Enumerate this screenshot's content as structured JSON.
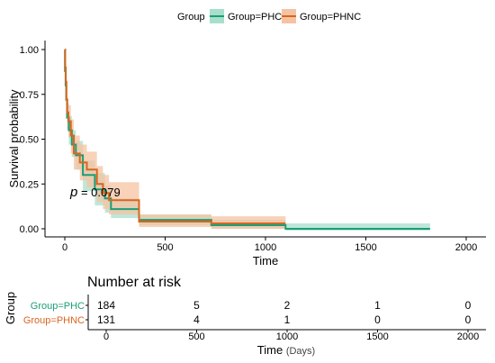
{
  "chart_data": {
    "type": "line",
    "legend": {
      "title": "Group",
      "position": "top",
      "entries": [
        "Group=PHC",
        "Group=PHNC"
      ]
    },
    "colors": {
      "phc": "#1a9e77",
      "phnc": "#d9661f",
      "phc_band": "#a8dfcc",
      "phnc_band": "#f5c3a2"
    },
    "xlabel": "Time",
    "ylabel": "Survival probability",
    "xlim": [
      0,
      2000
    ],
    "ylim": [
      0,
      1
    ],
    "xticks": [
      "0",
      "500",
      "1000",
      "1500",
      "2000"
    ],
    "yticks": [
      "0.00",
      "0.25",
      "0.50",
      "0.75",
      "1.00"
    ],
    "annotation": {
      "italic": "p",
      "text": " = 0.079"
    },
    "series": [
      {
        "name": "Group=PHC",
        "steps": [
          [
            0,
            1.0
          ],
          [
            1,
            0.88
          ],
          [
            4,
            0.8
          ],
          [
            7,
            0.72
          ],
          [
            11,
            0.62
          ],
          [
            20,
            0.55
          ],
          [
            35,
            0.47
          ],
          [
            55,
            0.41
          ],
          [
            90,
            0.3
          ],
          [
            150,
            0.22
          ],
          [
            200,
            0.17
          ],
          [
            230,
            0.11
          ],
          [
            370,
            0.05
          ],
          [
            730,
            0.02
          ],
          [
            1100,
            0.0
          ],
          [
            1820,
            0.0
          ]
        ],
        "band": [
          [
            0,
            1.0,
            1.0
          ],
          [
            1,
            0.83,
            0.92
          ],
          [
            4,
            0.74,
            0.86
          ],
          [
            7,
            0.65,
            0.79
          ],
          [
            11,
            0.55,
            0.7
          ],
          [
            20,
            0.47,
            0.63
          ],
          [
            35,
            0.4,
            0.55
          ],
          [
            55,
            0.33,
            0.49
          ],
          [
            90,
            0.21,
            0.38
          ],
          [
            150,
            0.13,
            0.31
          ],
          [
            200,
            0.09,
            0.24
          ],
          [
            230,
            0.06,
            0.17
          ],
          [
            370,
            0.02,
            0.08
          ],
          [
            730,
            0.0,
            0.05
          ],
          [
            1100,
            -0.01,
            0.03
          ],
          [
            1820,
            -0.01,
            0.03
          ]
        ]
      },
      {
        "name": "Group=PHNC",
        "steps": [
          [
            0,
            1.0
          ],
          [
            2,
            0.9
          ],
          [
            5,
            0.82
          ],
          [
            8,
            0.72
          ],
          [
            12,
            0.65
          ],
          [
            18,
            0.6
          ],
          [
            30,
            0.52
          ],
          [
            45,
            0.42
          ],
          [
            75,
            0.37
          ],
          [
            110,
            0.33
          ],
          [
            160,
            0.25
          ],
          [
            190,
            0.2
          ],
          [
            220,
            0.16
          ],
          [
            370,
            0.04
          ],
          [
            730,
            0.03
          ],
          [
            1100,
            0.03
          ]
        ],
        "band": [
          [
            0,
            1.0,
            1.0
          ],
          [
            2,
            0.84,
            0.95
          ],
          [
            5,
            0.74,
            0.88
          ],
          [
            8,
            0.64,
            0.8
          ],
          [
            12,
            0.56,
            0.73
          ],
          [
            18,
            0.51,
            0.69
          ],
          [
            30,
            0.42,
            0.61
          ],
          [
            45,
            0.33,
            0.52
          ],
          [
            75,
            0.27,
            0.47
          ],
          [
            110,
            0.23,
            0.43
          ],
          [
            160,
            0.15,
            0.35
          ],
          [
            190,
            0.11,
            0.3
          ],
          [
            220,
            0.08,
            0.26
          ],
          [
            370,
            0.01,
            0.08
          ],
          [
            730,
            0.0,
            0.07
          ],
          [
            1100,
            0.0,
            0.07
          ]
        ]
      }
    ],
    "risk_table": {
      "title": "Number at risk",
      "ylabel": "Group",
      "xlabel": "Time",
      "xlabel_unit": "(Days)",
      "times": [
        0,
        500,
        1000,
        1500,
        2000
      ],
      "xticks": [
        "0",
        "500",
        "1000",
        "1500",
        "2000"
      ],
      "rows": [
        {
          "label": "Group=PHC",
          "counts": [
            "184",
            "5",
            "2",
            "1",
            "0"
          ]
        },
        {
          "label": "Group=PHNC",
          "counts": [
            "131",
            "4",
            "1",
            "0",
            "0"
          ]
        }
      ]
    }
  }
}
